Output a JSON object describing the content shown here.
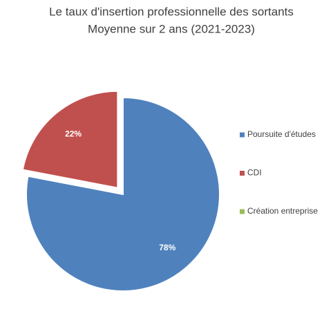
{
  "chart_data": {
    "type": "pie",
    "title": "Le taux d'insertion professionnelle des sortants",
    "subtitle": "Moyenne sur 2 ans (2021-2023)",
    "categories": [
      "Poursuite d'études",
      "CDI",
      "Création entreprise"
    ],
    "values": [
      78,
      22,
      0
    ],
    "value_labels": [
      "78%",
      "22%",
      null
    ],
    "colors": [
      "#4f81bd",
      "#c0504d",
      "#9bbb59"
    ],
    "explode": [
      false,
      true,
      false
    ],
    "legend": "right"
  }
}
